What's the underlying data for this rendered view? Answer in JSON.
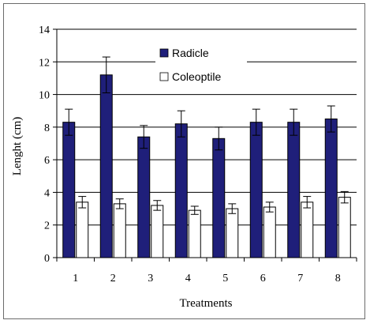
{
  "chart_data": {
    "type": "bar",
    "title": "",
    "xlabel": "Treatments",
    "ylabel": "Lenght (cm)",
    "categories": [
      "1",
      "2",
      "3",
      "4",
      "5",
      "6",
      "7",
      "8"
    ],
    "ylim": [
      0,
      14
    ],
    "yticks": [
      "0",
      "2",
      "4",
      "6",
      "8",
      "10",
      "12",
      "14"
    ],
    "grid": "horizontal",
    "legend_position": "top-center",
    "series": [
      {
        "name": "Radicle",
        "color": "#1f1f7a",
        "values": [
          8.3,
          11.2,
          7.4,
          8.2,
          7.3,
          8.3,
          8.3,
          8.5
        ],
        "errors": [
          0.8,
          1.1,
          0.7,
          0.8,
          0.7,
          0.8,
          0.8,
          0.8
        ]
      },
      {
        "name": "Coleoptile",
        "color": "#ffffff",
        "values": [
          3.4,
          3.3,
          3.2,
          2.9,
          3.0,
          3.1,
          3.4,
          3.7
        ],
        "errors": [
          0.35,
          0.3,
          0.3,
          0.25,
          0.3,
          0.3,
          0.35,
          0.35
        ]
      }
    ]
  }
}
